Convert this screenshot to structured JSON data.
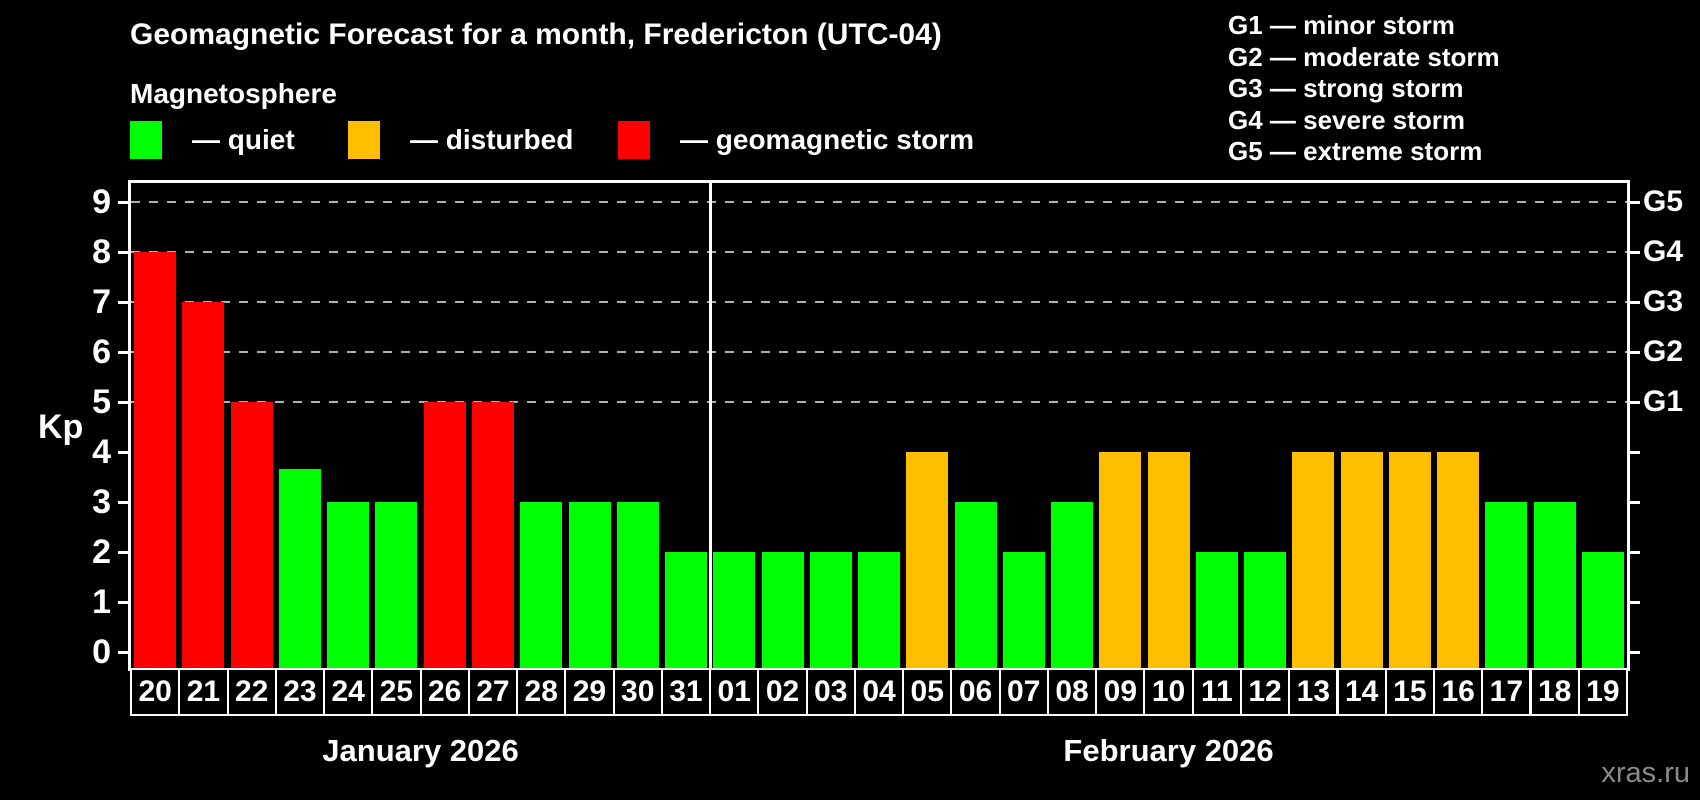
{
  "header": {
    "title": "Geomagnetic Forecast for a month, Fredericton (UTC-04)",
    "subtitle": "Magnetosphere",
    "legend": [
      {
        "key": "quiet",
        "label": "— quiet",
        "color": "#00ff00"
      },
      {
        "key": "disturbed",
        "label": "— disturbed",
        "color": "#ffbe00"
      },
      {
        "key": "storm",
        "label": "— geomagnetic storm",
        "color": "#ff0000"
      }
    ],
    "storm_scale": [
      "G1 — minor storm",
      "G2 — moderate storm",
      "G3 — strong storm",
      "G4 — severe storm",
      "G5 — extreme storm"
    ]
  },
  "chart_data": {
    "type": "bar",
    "title": "Geomagnetic Forecast for a month, Fredericton (UTC-04)",
    "xlabel": "",
    "ylabel": "Kp",
    "ylim": [
      0,
      9
    ],
    "grid": "dashed horizontal at Kp 5-9",
    "legend_position": "top",
    "colors": {
      "quiet": "#00ff00",
      "disturbed": "#ffbe00",
      "storm": "#ff0000"
    },
    "yticks": [
      "0",
      "1",
      "2",
      "3",
      "4",
      "5",
      "6",
      "7",
      "8",
      "9"
    ],
    "gridlines_kp": [
      5,
      6,
      7,
      8,
      9
    ],
    "right_axis_labels": [
      {
        "kp": 5,
        "label": "G1"
      },
      {
        "kp": 6,
        "label": "G2"
      },
      {
        "kp": 7,
        "label": "G3"
      },
      {
        "kp": 8,
        "label": "G4"
      },
      {
        "kp": 9,
        "label": "G5"
      }
    ],
    "months": [
      {
        "label": "January 2026",
        "days": 12
      },
      {
        "label": "February 2026",
        "days": 19
      }
    ],
    "bars": [
      {
        "date": "20",
        "value": 8,
        "status": "storm"
      },
      {
        "date": "21",
        "value": 7,
        "status": "storm"
      },
      {
        "date": "22",
        "value": 5,
        "status": "storm"
      },
      {
        "date": "23",
        "value": 3.67,
        "status": "quiet"
      },
      {
        "date": "24",
        "value": 3,
        "status": "quiet"
      },
      {
        "date": "25",
        "value": 3,
        "status": "quiet"
      },
      {
        "date": "26",
        "value": 5,
        "status": "storm"
      },
      {
        "date": "27",
        "value": 5,
        "status": "storm"
      },
      {
        "date": "28",
        "value": 3,
        "status": "quiet"
      },
      {
        "date": "29",
        "value": 3,
        "status": "quiet"
      },
      {
        "date": "30",
        "value": 3,
        "status": "quiet"
      },
      {
        "date": "31",
        "value": 2,
        "status": "quiet"
      },
      {
        "date": "01",
        "value": 2,
        "status": "quiet"
      },
      {
        "date": "02",
        "value": 2,
        "status": "quiet"
      },
      {
        "date": "03",
        "value": 2,
        "status": "quiet"
      },
      {
        "date": "04",
        "value": 2,
        "status": "quiet"
      },
      {
        "date": "05",
        "value": 4,
        "status": "disturbed"
      },
      {
        "date": "06",
        "value": 3,
        "status": "quiet"
      },
      {
        "date": "07",
        "value": 2,
        "status": "quiet"
      },
      {
        "date": "08",
        "value": 3,
        "status": "quiet"
      },
      {
        "date": "09",
        "value": 4,
        "status": "disturbed"
      },
      {
        "date": "10",
        "value": 4,
        "status": "disturbed"
      },
      {
        "date": "11",
        "value": 2,
        "status": "quiet"
      },
      {
        "date": "12",
        "value": 2,
        "status": "quiet"
      },
      {
        "date": "13",
        "value": 4,
        "status": "disturbed"
      },
      {
        "date": "14",
        "value": 4,
        "status": "disturbed"
      },
      {
        "date": "15",
        "value": 4,
        "status": "disturbed"
      },
      {
        "date": "16",
        "value": 4,
        "status": "disturbed"
      },
      {
        "date": "17",
        "value": 3,
        "status": "quiet"
      },
      {
        "date": "18",
        "value": 3,
        "status": "quiet"
      },
      {
        "date": "19",
        "value": 2,
        "status": "quiet"
      }
    ]
  },
  "watermark": "xras.ru"
}
